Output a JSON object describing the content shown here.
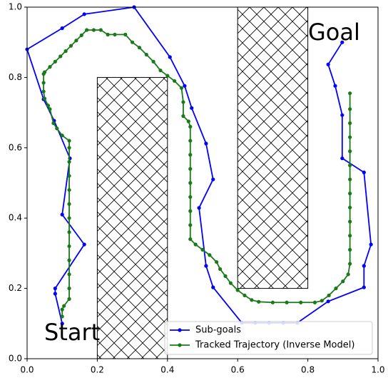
{
  "chart_data": {
    "type": "line",
    "xlim": [
      0,
      1
    ],
    "ylim": [
      0,
      1
    ],
    "xticks": [
      {
        "value": 0,
        "label": "0.0"
      },
      0.2,
      0.4,
      0.6,
      0.8,
      {
        "value": 1,
        "label": "1.0"
      }
    ],
    "yticks": [
      {
        "value": 0,
        "label": "0.0"
      },
      0.2,
      0.4,
      0.6,
      0.8,
      {
        "value": 1,
        "label": "1.0"
      }
    ],
    "annotations": [
      "Start",
      "Goal"
    ],
    "obstacles": [
      {
        "x": [
          0.2,
          0.4
        ],
        "y": [
          0,
          0.8
        ]
      },
      {
        "x": [
          0.6,
          0.8
        ],
        "y": [
          0.2,
          1.0
        ]
      }
    ],
    "series": [
      {
        "name": "Sub-goals",
        "color": "#0000ff",
        "x": [
          0.1,
          0.08,
          0.08,
          0.163,
          0.1,
          0.122,
          0.077,
          0.047,
          0.0,
          0.1,
          0.163,
          0.305,
          0.407,
          0.449,
          0.469,
          0.51,
          0.53,
          0.49,
          0.51,
          0.53,
          0.612,
          0.65,
          0.69,
          0.73,
          0.77,
          0.858,
          0.96,
          0.96,
          0.98,
          0.96,
          0.898,
          0.898,
          0.878,
          0.858,
          0.898
        ],
        "values": [
          0.1,
          0.185,
          0.2,
          0.325,
          0.41,
          0.57,
          0.677,
          0.738,
          0.88,
          0.94,
          0.98,
          1.0,
          0.858,
          0.776,
          0.713,
          0.612,
          0.51,
          0.429,
          0.264,
          0.203,
          0.102,
          0.102,
          0.102,
          0.102,
          0.102,
          0.163,
          0.203,
          0.264,
          0.325,
          0.53,
          0.57,
          0.693,
          0.776,
          0.837,
          0.9
        ]
      },
      {
        "name": "Tracked Trajectory (Inverse Model)",
        "color": "#1a7a1a",
        "x": [
          0.1,
          0.1,
          0.105,
          0.12,
          0.12,
          0.12,
          0.12,
          0.12,
          0.12,
          0.12,
          0.12,
          0.12,
          0.12,
          0.12,
          0.12,
          0.12,
          0.1,
          0.085,
          0.075,
          0.065,
          0.06,
          0.05,
          0.047,
          0.047,
          0.047,
          0.05,
          0.065,
          0.08,
          0.095,
          0.11,
          0.125,
          0.14,
          0.155,
          0.17,
          0.19,
          0.21,
          0.23,
          0.25,
          0.28,
          0.3,
          0.32,
          0.34,
          0.36,
          0.38,
          0.4,
          0.42,
          0.44,
          0.445,
          0.445,
          0.46,
          0.465,
          0.465,
          0.465,
          0.465,
          0.465,
          0.465,
          0.465,
          0.465,
          0.465,
          0.48,
          0.5,
          0.52,
          0.54,
          0.55,
          0.565,
          0.58,
          0.6,
          0.62,
          0.64,
          0.66,
          0.7,
          0.74,
          0.78,
          0.82,
          0.84,
          0.86,
          0.88,
          0.9,
          0.915,
          0.92,
          0.92,
          0.92,
          0.92,
          0.92,
          0.92,
          0.92,
          0.92,
          0.92,
          0.92,
          0.92,
          0.92,
          0.92
        ],
        "values": [
          0.12,
          0.14,
          0.15,
          0.17,
          0.2,
          0.24,
          0.28,
          0.32,
          0.36,
          0.4,
          0.44,
          0.48,
          0.52,
          0.56,
          0.6,
          0.62,
          0.635,
          0.655,
          0.67,
          0.71,
          0.72,
          0.74,
          0.76,
          0.785,
          0.81,
          0.815,
          0.83,
          0.845,
          0.86,
          0.875,
          0.89,
          0.905,
          0.92,
          0.935,
          0.935,
          0.935,
          0.922,
          0.922,
          0.922,
          0.9,
          0.885,
          0.865,
          0.845,
          0.82,
          0.805,
          0.79,
          0.77,
          0.73,
          0.69,
          0.675,
          0.66,
          0.62,
          0.58,
          0.54,
          0.5,
          0.46,
          0.42,
          0.38,
          0.34,
          0.325,
          0.31,
          0.295,
          0.275,
          0.255,
          0.235,
          0.215,
          0.195,
          0.18,
          0.167,
          0.162,
          0.16,
          0.16,
          0.16,
          0.16,
          0.165,
          0.18,
          0.2,
          0.22,
          0.24,
          0.27,
          0.31,
          0.35,
          0.39,
          0.43,
          0.47,
          0.51,
          0.55,
          0.59,
          0.63,
          0.67,
          0.71,
          0.755
        ]
      }
    ]
  }
}
